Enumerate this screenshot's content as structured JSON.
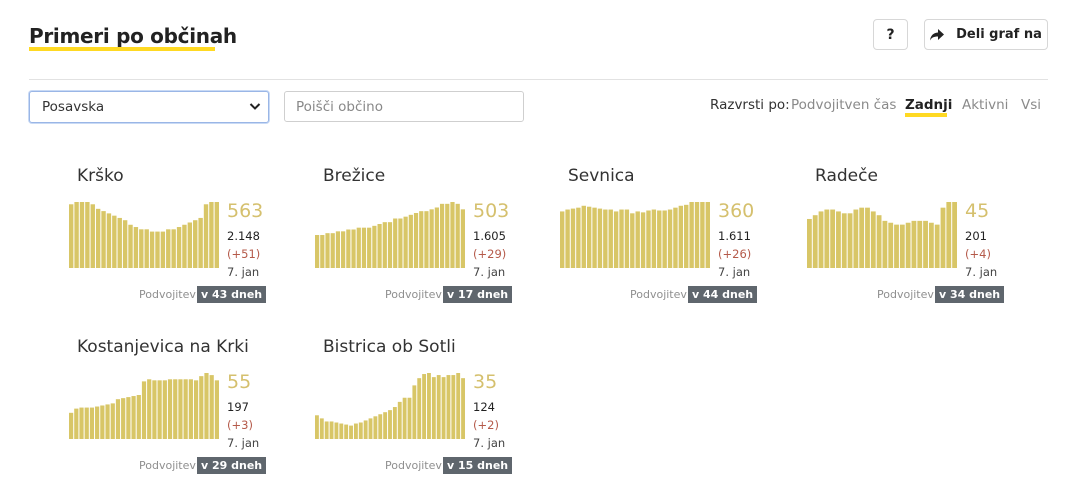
{
  "header": {
    "title": "Primeri po občinah",
    "help_label": "?",
    "share_label": "Deli graf na"
  },
  "filters": {
    "region_selected": "Posavska",
    "search_placeholder": "Poišči občino"
  },
  "sort": {
    "label": "Razvrsti po:",
    "options": [
      "Podvojitven čas",
      "Zadnji",
      "Aktivni",
      "Vsi"
    ],
    "active": "Zadnji"
  },
  "colors": {
    "bar": "#d8c667",
    "accent": "#ffd922",
    "badge": "#5f666d",
    "diff": "#b55a4a",
    "big": "#d5c06e"
  },
  "municipalities": [
    {
      "name": "Krško",
      "active": "563",
      "total": "2.148",
      "diff": "(+51)",
      "date": "7. jan",
      "doubling_label": "Podvojitev",
      "doubling_value": "v 43 dneh",
      "series": [
        28,
        29,
        29,
        29,
        28,
        26,
        25,
        24,
        23,
        22,
        21,
        19,
        18,
        17,
        17,
        16,
        16,
        16,
        17,
        17,
        18,
        19,
        20,
        21,
        22,
        28,
        29,
        29
      ]
    },
    {
      "name": "Brežice",
      "active": "503",
      "total": "1.605",
      "diff": "(+29)",
      "date": "7. jan",
      "doubling_label": "Podvojitev",
      "doubling_value": "v 17 dneh",
      "series": [
        18,
        18,
        19,
        19,
        20,
        20,
        21,
        21,
        22,
        22,
        22,
        23,
        24,
        25,
        25,
        27,
        27,
        28,
        29,
        30,
        31,
        31,
        32,
        33,
        35,
        35,
        36,
        35,
        32
      ]
    },
    {
      "name": "Sevnica",
      "active": "360",
      "total": "1.611",
      "diff": "(+26)",
      "date": "7. jan",
      "doubling_label": "Podvojitev",
      "doubling_value": "v 44 dneh",
      "series": [
        60,
        62,
        63,
        64,
        66,
        65,
        64,
        63,
        62,
        62,
        60,
        62,
        62,
        58,
        60,
        59,
        61,
        62,
        61,
        61,
        62,
        64,
        66,
        67,
        70,
        70,
        70,
        70
      ]
    },
    {
      "name": "Radeče",
      "active": "45",
      "total": "201",
      "diff": "(+4)",
      "date": "7. jan",
      "doubling_label": "Podvojitev",
      "doubling_value": "v 34 dneh",
      "series": [
        26,
        28,
        30,
        31,
        31,
        30,
        29,
        29,
        31,
        32,
        32,
        30,
        28,
        25,
        24,
        23,
        23,
        24,
        25,
        25,
        25,
        24,
        23,
        32,
        35,
        35
      ]
    },
    {
      "name": "Kostanjevica na Krki",
      "active": "55",
      "total": "197",
      "diff": "(+3)",
      "date": "7. jan",
      "doubling_label": "Podvojitev",
      "doubling_value": "v 29 dneh",
      "series": [
        25,
        29,
        30,
        30,
        30,
        31,
        32,
        33,
        34,
        38,
        39,
        40,
        41,
        42,
        55,
        57,
        56,
        56,
        56,
        57,
        57,
        57,
        57,
        57,
        56,
        60,
        63,
        61,
        56
      ]
    },
    {
      "name": "Bistrica ob Sotli",
      "active": "35",
      "total": "124",
      "diff": "(+2)",
      "date": "7. jan",
      "doubling_label": "Podvojitev",
      "doubling_value": "v 15 dneh",
      "series": [
        23,
        20,
        17,
        17,
        16,
        15,
        14,
        13,
        15,
        16,
        18,
        20,
        22,
        24,
        26,
        28,
        31,
        36,
        40,
        40,
        52,
        59,
        63,
        64,
        60,
        62,
        60,
        62,
        62,
        64,
        59
      ]
    }
  ]
}
